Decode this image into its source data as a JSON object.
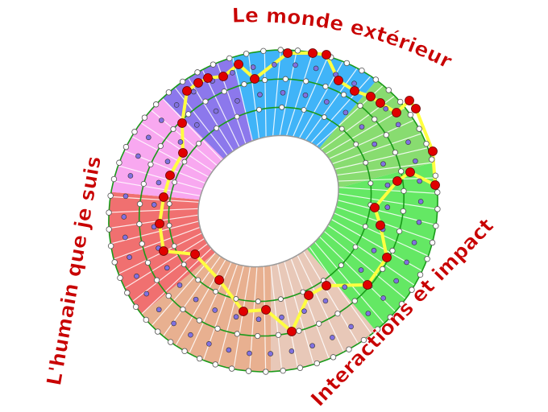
{
  "labels": {
    "top": "Le monde extérieur",
    "left": "L'humain que je suis",
    "bottom_right": "Interactions et impact"
  },
  "colors": {
    "label": "#c80000",
    "path": "#ffff40",
    "red_node": "#e00000",
    "inner_node": "#8070e0",
    "ring_line": "#1a9a1a",
    "sectors": [
      "#f07070",
      "#f8a8f0",
      "#8c78ec",
      "#40b4f8",
      "#88dc70",
      "#64e864",
      "#e8c8b8",
      "#e8b090"
    ]
  }
}
